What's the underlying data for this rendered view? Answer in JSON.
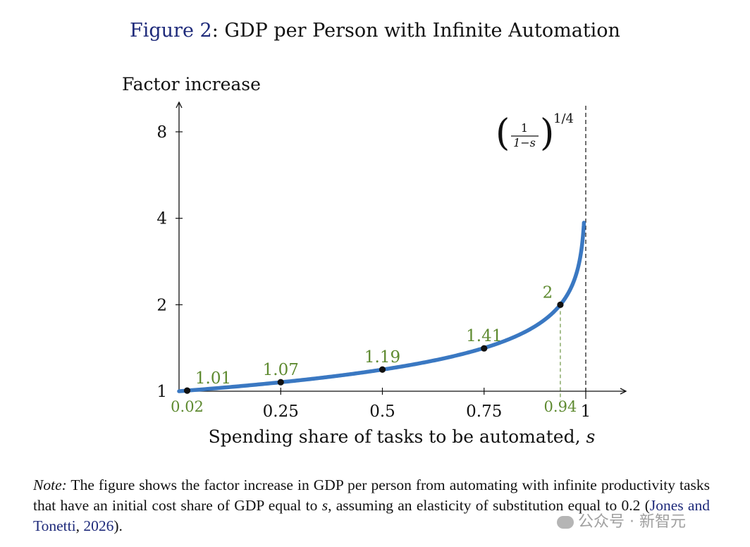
{
  "figure": {
    "label": "Figure 2",
    "title": ": GDP per Person with Infinite Automation"
  },
  "chart_data": {
    "type": "line",
    "ylabel": "Factor increase",
    "xlabel": "Spending share of tasks to be automated, ",
    "xlabel_var": "s",
    "yscale": "log2",
    "xlim": [
      0,
      1
    ],
    "ylim": [
      1,
      8
    ],
    "x_ticks": [
      {
        "value": 0.25,
        "label": "0.25"
      },
      {
        "value": 0.5,
        "label": "0.5"
      },
      {
        "value": 0.75,
        "label": "0.75"
      },
      {
        "value": 1,
        "label": "1"
      }
    ],
    "y_ticks": [
      {
        "value": 1,
        "label": "1"
      },
      {
        "value": 2,
        "label": "2"
      },
      {
        "value": 4,
        "label": "4"
      },
      {
        "value": 8,
        "label": "8"
      }
    ],
    "formula_label": {
      "numerator": "1",
      "denominator": "1−s",
      "exponent": "1/4"
    },
    "series": [
      {
        "color": "#3a78c2",
        "function_exponent": 0.25
      }
    ],
    "points": [
      {
        "x": 0.02,
        "y": 1.005,
        "label": "1.01",
        "x_label": "0.02"
      },
      {
        "x": 0.25,
        "y": 1.075,
        "label": "1.07"
      },
      {
        "x": 0.5,
        "y": 1.19,
        "label": "1.19"
      },
      {
        "x": 0.75,
        "y": 1.41,
        "label": "1.41"
      },
      {
        "x": 0.9375,
        "y": 2,
        "label": "2",
        "x_label": "0.94"
      }
    ],
    "asymptote_x": 1,
    "colors": {
      "curve": "#3a78c2",
      "highlight": "#5e8a30",
      "axis": "#111111"
    }
  },
  "note": {
    "label": "Note:",
    "text_before": " The figure shows the factor increase in GDP per person from automating with infinite productivity tasks that have an initial cost share of GDP equal to ",
    "var": "s",
    "text_after": ", assuming an elasticity of substitution equal to 0.2 (",
    "citation_authors": "Jones and Tonetti",
    "citation_sep": ", ",
    "citation_year": "2026",
    "text_end": ")."
  },
  "watermark": {
    "text": "公众号 · 新智元",
    "icon": "wechat-icon"
  }
}
